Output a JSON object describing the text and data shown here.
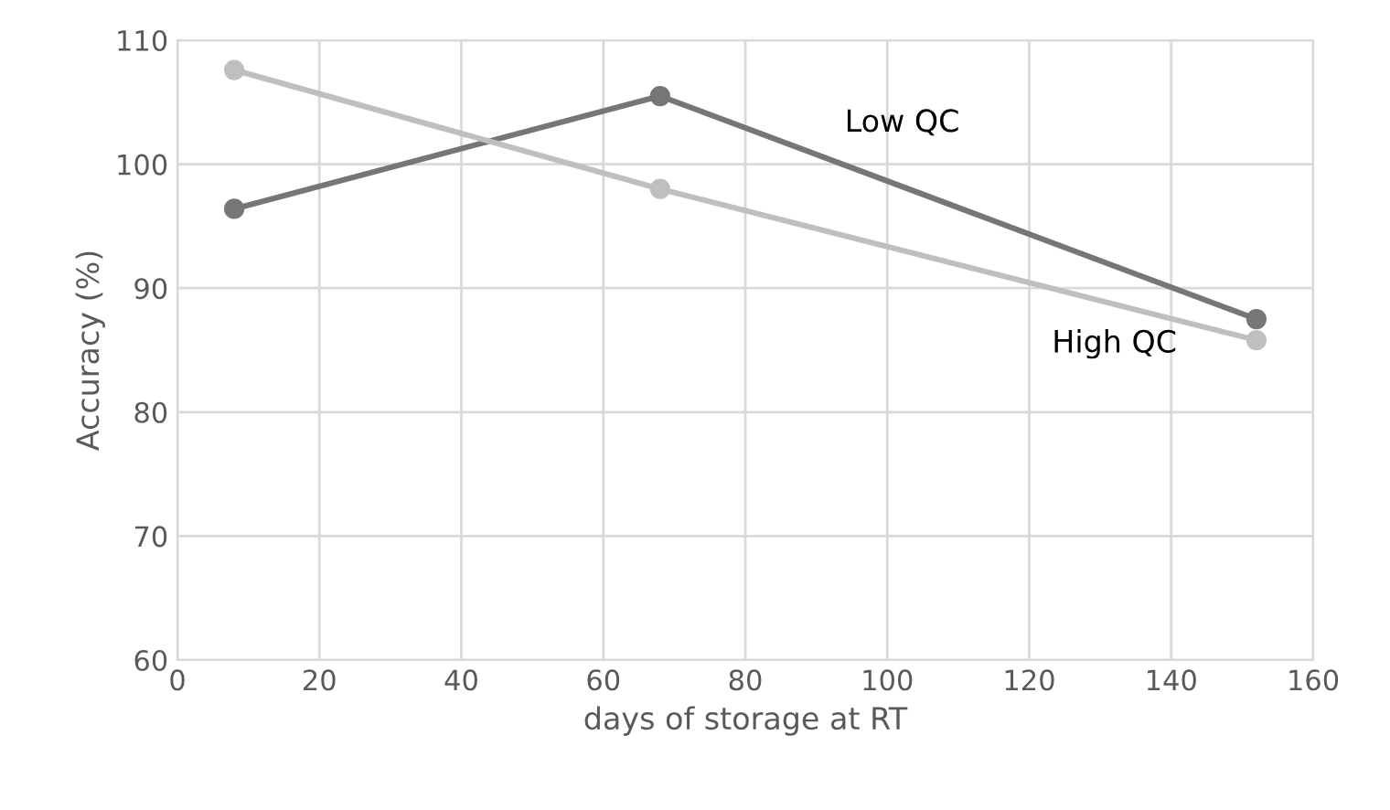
{
  "chart_data": {
    "type": "line",
    "xlabel": "days of storage at RT",
    "ylabel": "Accuracy (%)",
    "series": [
      {
        "name": "Low QC",
        "color": "#767676",
        "x": [
          8,
          68,
          152
        ],
        "values": [
          96.4,
          105.5,
          87.5
        ]
      },
      {
        "name": "High QC",
        "color": "#bfbfbf",
        "x": [
          8,
          68,
          152
        ],
        "values": [
          107.6,
          98.0,
          85.8
        ]
      }
    ],
    "xlim": [
      0,
      160
    ],
    "xticks": [
      0,
      20,
      40,
      60,
      80,
      100,
      120,
      140,
      160
    ],
    "ylim": [
      60,
      110
    ],
    "yticks": [
      60,
      70,
      80,
      90,
      100,
      110
    ],
    "grid": true,
    "marker": "circle",
    "line_style": "solid"
  }
}
